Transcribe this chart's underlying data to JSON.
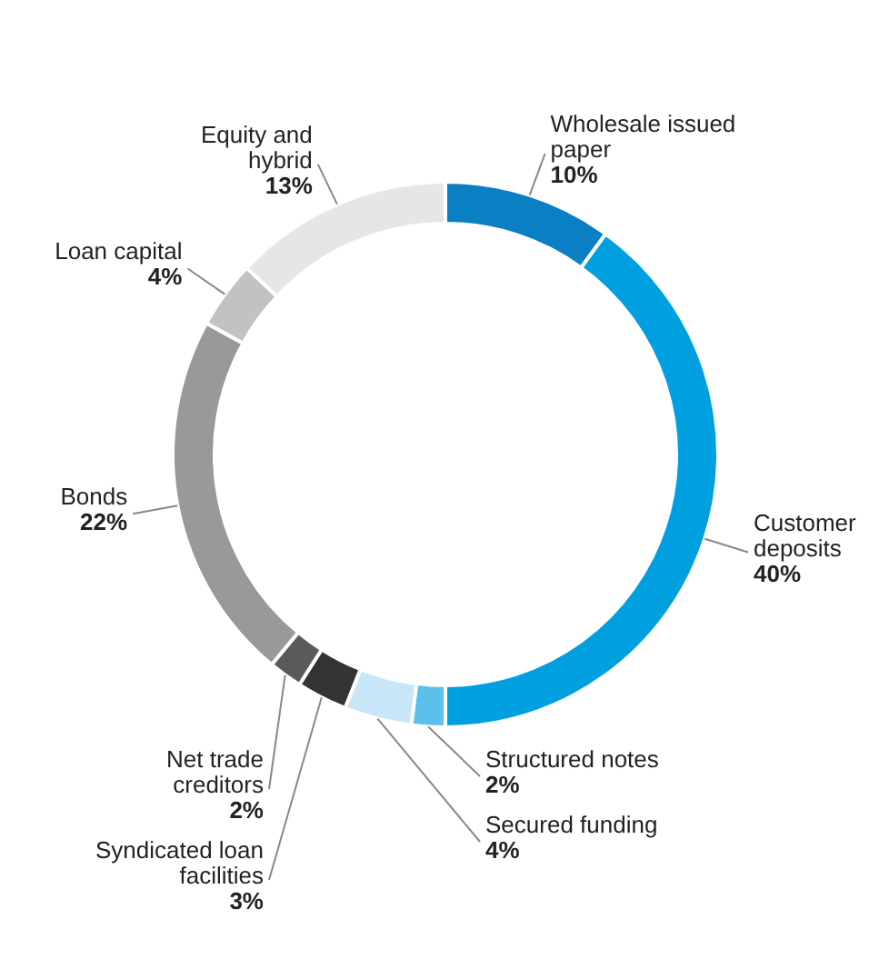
{
  "chart_data": {
    "type": "donut",
    "categories": [
      "Wholesale issued paper",
      "Customer deposits",
      "Structured notes",
      "Secured funding",
      "Syndicated loan facilities",
      "Net trade creditors",
      "Bonds",
      "Loan capital",
      "Equity and hybrid"
    ],
    "values": [
      10,
      40,
      2,
      4,
      3,
      2,
      22,
      4,
      13
    ],
    "colors": [
      "#0a7fc4",
      "#00a0e0",
      "#5bc0ec",
      "#c8e6f8",
      "#333333",
      "#5a5a5a",
      "#999999",
      "#c2c2c2",
      "#e6e6e6"
    ],
    "value_labels": [
      "10%",
      "40%",
      "2%",
      "4%",
      "3%",
      "2%",
      "22%",
      "4%",
      "13%"
    ]
  }
}
